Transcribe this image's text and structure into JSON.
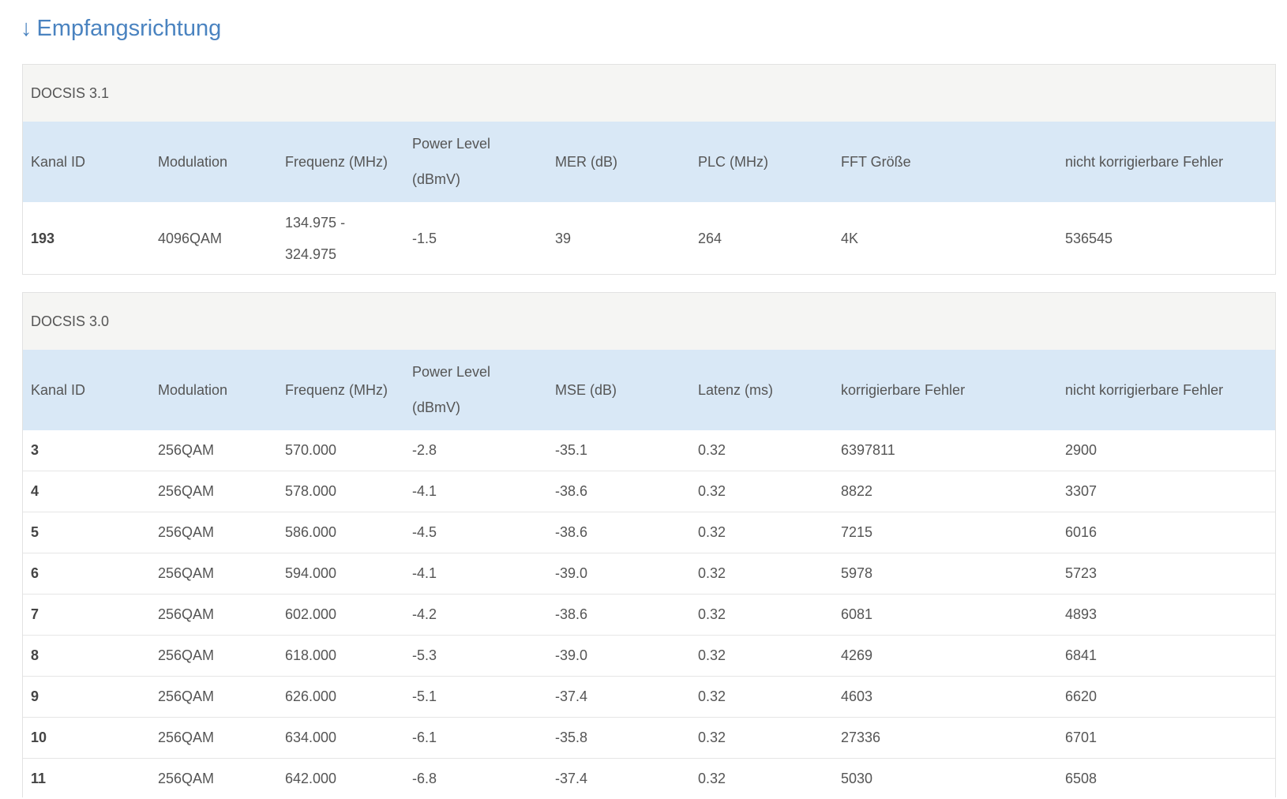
{
  "heading": {
    "arrow": "↓",
    "title": "Empfangsrichtung"
  },
  "docsis31": {
    "title": "DOCSIS 3.1",
    "headers": [
      "Kanal ID",
      "Modulation",
      "Frequenz (MHz)",
      "Power Level (dBmV)",
      "MER (dB)",
      "PLC (MHz)",
      "FFT Größe",
      "nicht korrigierbare Fehler"
    ],
    "rows": [
      [
        "193",
        "4096QAM",
        "134.975 - 324.975",
        "-1.5",
        "39",
        "264",
        "4K",
        "536545"
      ]
    ]
  },
  "docsis30": {
    "title": "DOCSIS 3.0",
    "headers": [
      "Kanal ID",
      "Modulation",
      "Frequenz (MHz)",
      "Power Level (dBmV)",
      "MSE (dB)",
      "Latenz (ms)",
      "korrigierbare Fehler",
      "nicht korrigierbare Fehler"
    ],
    "rows": [
      [
        "3",
        "256QAM",
        "570.000",
        "-2.8",
        "-35.1",
        "0.32",
        "6397811",
        "2900"
      ],
      [
        "4",
        "256QAM",
        "578.000",
        "-4.1",
        "-38.6",
        "0.32",
        "8822",
        "3307"
      ],
      [
        "5",
        "256QAM",
        "586.000",
        "-4.5",
        "-38.6",
        "0.32",
        "7215",
        "6016"
      ],
      [
        "6",
        "256QAM",
        "594.000",
        "-4.1",
        "-39.0",
        "0.32",
        "5978",
        "5723"
      ],
      [
        "7",
        "256QAM",
        "602.000",
        "-4.2",
        "-38.6",
        "0.32",
        "6081",
        "4893"
      ],
      [
        "8",
        "256QAM",
        "618.000",
        "-5.3",
        "-39.0",
        "0.32",
        "4269",
        "6841"
      ],
      [
        "9",
        "256QAM",
        "626.000",
        "-5.1",
        "-37.4",
        "0.32",
        "4603",
        "6620"
      ],
      [
        "10",
        "256QAM",
        "634.000",
        "-6.1",
        "-35.8",
        "0.32",
        "27336",
        "6701"
      ],
      [
        "11",
        "256QAM",
        "642.000",
        "-6.8",
        "-37.4",
        "0.32",
        "5030",
        "6508"
      ]
    ]
  },
  "colors": {
    "heading": "#4a83c0",
    "header_row": "#d9e8f6",
    "panel_title_bg": "#f5f5f3"
  }
}
